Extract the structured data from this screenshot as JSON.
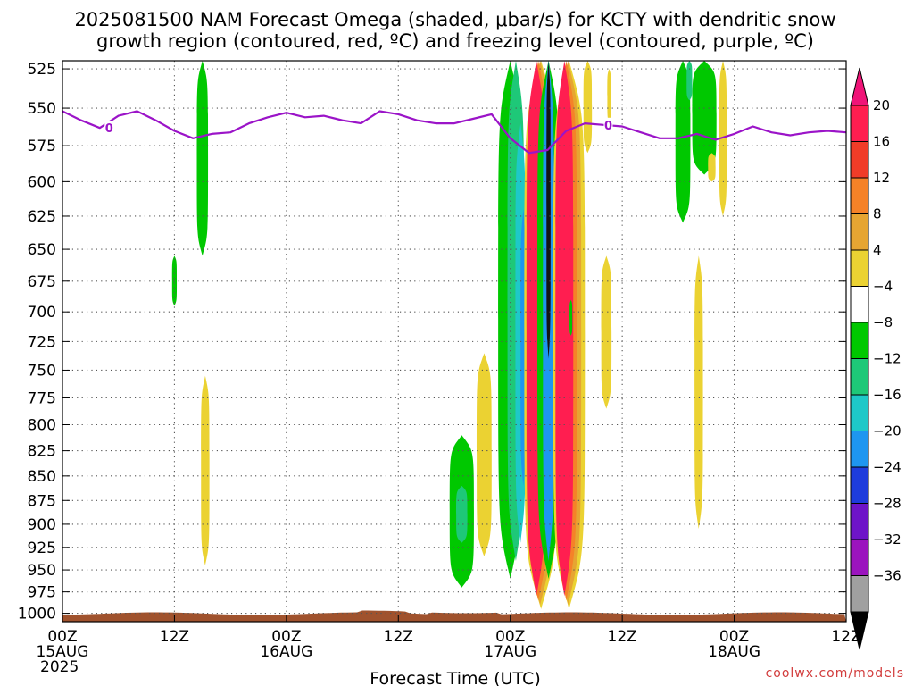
{
  "chart_data": {
    "type": "heatmap",
    "title_lines": [
      "2025081500 NAM Forecast Omega (shaded, μbar/s) for KCTY with dendritic snow",
      "growth region (contoured, red, ºC) and freezing level (contoured, purple, ºC)"
    ],
    "xlabel": "Forecast Time (UTC)",
    "credit": "coolwx.com/models",
    "xlim": [
      0,
      84
    ],
    "x_ticks": [
      {
        "x": 0,
        "label": "00Z",
        "sub": "15AUG",
        "sub2": "2025"
      },
      {
        "x": 12,
        "label": "12Z",
        "sub": "",
        "sub2": ""
      },
      {
        "x": 24,
        "label": "00Z",
        "sub": "16AUG",
        "sub2": ""
      },
      {
        "x": 36,
        "label": "12Z",
        "sub": "",
        "sub2": ""
      },
      {
        "x": 48,
        "label": "00Z",
        "sub": "17AUG",
        "sub2": ""
      },
      {
        "x": 60,
        "label": "12Z",
        "sub": "",
        "sub2": ""
      },
      {
        "x": 72,
        "label": "00Z",
        "sub": "18AUG",
        "sub2": ""
      },
      {
        "x": 84,
        "label": "12Z",
        "sub": "",
        "sub2": ""
      }
    ],
    "y_ticks": [
      "525",
      "550",
      "575",
      "600",
      "625",
      "650",
      "675",
      "700",
      "725",
      "750",
      "775",
      "800",
      "825",
      "850",
      "875",
      "900",
      "925",
      "950",
      "975",
      "1000"
    ],
    "ylim": [
      520,
      1010
    ],
    "y_scale": "log-pressure",
    "colorbar": {
      "labels": [
        "20",
        "16",
        "12",
        "8",
        "4",
        "−4",
        "−8",
        "−12",
        "−16",
        "−20",
        "−24",
        "−28",
        "−32",
        "−36"
      ],
      "colors": [
        "#ff1e50",
        "#f03c28",
        "#f58228",
        "#e6a532",
        "#ebd232",
        "#ffffff",
        "#00c800",
        "#1ec878",
        "#1ec8c8",
        "#1e96f0",
        "#1e3cdc",
        "#6e14c8",
        "#9b14be",
        "#a0a0a0"
      ],
      "top_arrow_color": "#f01478",
      "bottom_arrow_color": "#000000"
    },
    "freezing_level": {
      "label": "0",
      "color": "#9b14c8",
      "x": [
        0,
        2,
        4,
        6,
        8,
        10,
        12,
        14,
        16,
        18,
        20,
        22,
        24,
        26,
        28,
        30,
        32,
        34,
        36,
        38,
        40,
        42,
        44,
        46,
        48,
        50,
        52,
        54,
        56,
        58,
        60,
        62,
        64,
        66,
        68,
        70,
        72,
        74,
        76,
        78,
        80,
        82,
        84
      ],
      "p": [
        552,
        558,
        563,
        555,
        552,
        558,
        565,
        570,
        567,
        566,
        560,
        556,
        553,
        556,
        555,
        558,
        560,
        552,
        554,
        558,
        560,
        560,
        557,
        554,
        570,
        580,
        578,
        565,
        560,
        561,
        562,
        566,
        570,
        570,
        567,
        571,
        567,
        562,
        566,
        568,
        566,
        565,
        566
      ]
    },
    "omega_regions": [
      {
        "label": "-8",
        "color": "#00c800",
        "x_center": 15.0,
        "x_half": 0.6,
        "p_top": 520,
        "p_bot": 655
      },
      {
        "label": "-8",
        "color": "#00c800",
        "x_center": 12.0,
        "x_half": 0.25,
        "p_top": 655,
        "p_bot": 695
      },
      {
        "label": "4",
        "color": "#ebd232",
        "x_center": 15.3,
        "x_half": 0.45,
        "p_top": 755,
        "p_bot": 945
      },
      {
        "label": "-8",
        "color": "#00c800",
        "x_center": 42.8,
        "x_half": 1.3,
        "p_top": 810,
        "p_bot": 970
      },
      {
        "label": "-12",
        "color": "#1ec878",
        "x_center": 42.8,
        "x_half": 0.6,
        "p_top": 860,
        "p_bot": 920
      },
      {
        "label": "4",
        "color": "#ebd232",
        "x_center": 45.2,
        "x_half": 0.8,
        "p_top": 735,
        "p_bot": 935
      },
      {
        "label": "-8",
        "color": "#00c800",
        "x_center": 48.0,
        "x_half": 1.3,
        "p_top": 520,
        "p_bot": 960
      },
      {
        "label": "-12",
        "color": "#1ec878",
        "x_center": 48.6,
        "x_half": 0.9,
        "p_top": 520,
        "p_bot": 940
      },
      {
        "label": "-16",
        "color": "#1ec8c8",
        "x_center": 49.1,
        "x_half": 0.55,
        "p_top": 560,
        "p_bot": 920
      },
      {
        "label": "-20",
        "color": "#1e96f0",
        "x_center": 49.4,
        "x_half": 0.3,
        "p_top": 620,
        "p_bot": 860
      },
      {
        "label": "4",
        "color": "#ebd232",
        "x_center": 51.3,
        "x_half": 1.8,
        "p_top": 520,
        "p_bot": 995
      },
      {
        "label": "8",
        "color": "#e6a532",
        "x_center": 51.2,
        "x_half": 1.5,
        "p_top": 520,
        "p_bot": 990
      },
      {
        "label": "12",
        "color": "#f58228",
        "x_center": 51.0,
        "x_half": 1.25,
        "p_top": 520,
        "p_bot": 985
      },
      {
        "label": "20",
        "color": "#ff1e50",
        "x_center": 50.8,
        "x_half": 1.05,
        "p_top": 520,
        "p_bot": 980
      },
      {
        "label": "-8",
        "color": "#00c800",
        "x_center": 52.1,
        "x_half": 1.2,
        "p_top": 520,
        "p_bot": 960
      },
      {
        "label": "-20",
        "color": "#1e96f0",
        "x_center": 52.1,
        "x_half": 0.6,
        "p_top": 520,
        "p_bot": 940
      },
      {
        "label": "-36",
        "color": "#141414",
        "x_center": 52.1,
        "x_half": 0.22,
        "p_top": 520,
        "p_bot": 740
      },
      {
        "label": "4",
        "color": "#ebd232",
        "x_center": 54.3,
        "x_half": 1.7,
        "p_top": 520,
        "p_bot": 995
      },
      {
        "label": "8",
        "color": "#e6a532",
        "x_center": 54.2,
        "x_half": 1.4,
        "p_top": 520,
        "p_bot": 990
      },
      {
        "label": "12",
        "color": "#f58228",
        "x_center": 54.0,
        "x_half": 1.15,
        "p_top": 520,
        "p_bot": 985
      },
      {
        "label": "20",
        "color": "#ff1e50",
        "x_center": 53.8,
        "x_half": 0.95,
        "p_top": 520,
        "p_bot": 980
      },
      {
        "label": "4",
        "color": "#ebd232",
        "x_center": 56.3,
        "x_half": 0.45,
        "p_top": 520,
        "p_bot": 580
      },
      {
        "label": "4",
        "color": "#ebd232",
        "x_center": 58.3,
        "x_half": 0.55,
        "p_top": 655,
        "p_bot": 785
      },
      {
        "label": "-8",
        "color": "#00c800",
        "x_center": 54.5,
        "x_half": 0.15,
        "p_top": 690,
        "p_bot": 720
      },
      {
        "label": "4",
        "color": "#ebd232",
        "x_center": 58.6,
        "x_half": 0.2,
        "p_top": 525,
        "p_bot": 560
      },
      {
        "label": "-8",
        "color": "#00c800",
        "x_center": 66.5,
        "x_half": 0.8,
        "p_top": 520,
        "p_bot": 630
      },
      {
        "label": "-8",
        "color": "#00c800",
        "x_center": 68.8,
        "x_half": 1.3,
        "p_top": 520,
        "p_bot": 595
      },
      {
        "label": "-12",
        "color": "#1ec878",
        "x_center": 67.2,
        "x_half": 0.3,
        "p_top": 520,
        "p_bot": 545
      },
      {
        "label": "4",
        "color": "#ebd232",
        "x_center": 69.6,
        "x_half": 0.4,
        "p_top": 580,
        "p_bot": 600
      },
      {
        "label": "4",
        "color": "#ebd232",
        "x_center": 70.8,
        "x_half": 0.4,
        "p_top": 520,
        "p_bot": 625
      },
      {
        "label": "4",
        "color": "#ebd232",
        "x_center": 68.2,
        "x_half": 0.45,
        "p_top": 655,
        "p_bot": 905
      }
    ],
    "terrain_color": "#a0522d",
    "grid": true
  }
}
